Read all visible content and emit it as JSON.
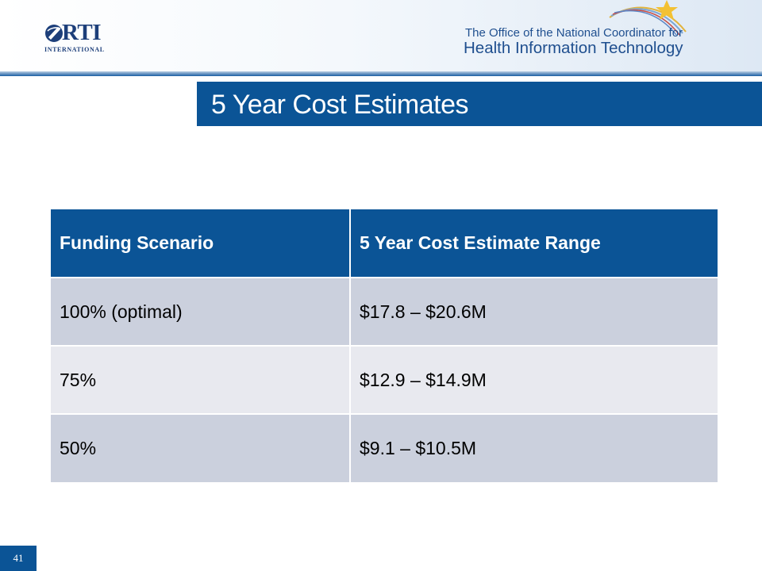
{
  "header": {
    "rti_logo": {
      "word": "RTI",
      "subtitle": "INTERNATIONAL"
    },
    "onc_logo": {
      "line1": "The Office of the National Coordinator for",
      "line2": "Health Information Technology"
    }
  },
  "slide": {
    "title": "5 Year Cost Estimates",
    "page_number": "41"
  },
  "table": {
    "headers": [
      "Funding Scenario",
      "5 Year Cost Estimate Range"
    ],
    "rows": [
      [
        "100% (optimal)",
        "$17.8 – $20.6M"
      ],
      [
        "75%",
        "$12.9 – $14.9M"
      ],
      [
        "50%",
        "$9.1 – $10.5M"
      ]
    ]
  },
  "colors": {
    "brand_blue": "#0b5496",
    "row_odd": "#cbd0dd",
    "row_even": "#e8e9ef"
  }
}
